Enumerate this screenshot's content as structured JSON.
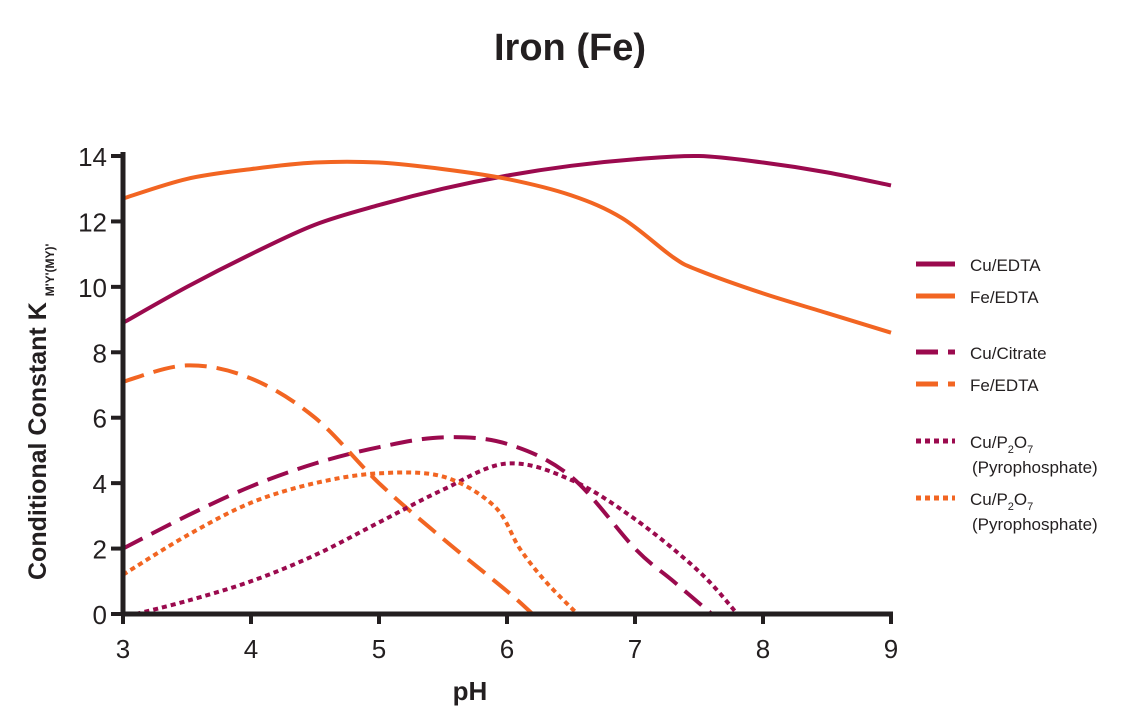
{
  "chart_data": {
    "type": "line",
    "title": "Iron (Fe)",
    "xlabel": "pH",
    "ylabel": "Conditional Constant K",
    "ylabel_subscript": "M'Y'(MY)'",
    "xlim": [
      3,
      9
    ],
    "ylim": [
      0,
      14
    ],
    "xticks": [
      3,
      4,
      5,
      6,
      7,
      8,
      9
    ],
    "yticks": [
      0,
      2,
      4,
      6,
      8,
      10,
      12,
      14
    ],
    "grid": false,
    "legend_position": "right",
    "colors": {
      "purple": "#9b0a4e",
      "orange": "#f26522"
    },
    "series": [
      {
        "name": "Cu/EDTA",
        "color": "#9b0a4e",
        "style": "solid",
        "x": [
          3,
          3.5,
          4,
          4.5,
          5,
          5.5,
          6,
          6.5,
          7,
          7.5,
          8,
          8.5,
          9
        ],
        "y": [
          8.9,
          10,
          11,
          11.9,
          12.5,
          13,
          13.4,
          13.7,
          13.9,
          14,
          13.8,
          13.5,
          13.1
        ]
      },
      {
        "name": "Fe/EDTA",
        "color": "#f26522",
        "style": "solid",
        "x": [
          3,
          3.5,
          4,
          4.5,
          5,
          5.5,
          6,
          6.5,
          6.9,
          7.3,
          7.5,
          8,
          8.5,
          9
        ],
        "y": [
          12.7,
          13.3,
          13.6,
          13.8,
          13.8,
          13.6,
          13.3,
          12.8,
          12.1,
          10.9,
          10.5,
          9.8,
          9.2,
          8.6
        ]
      },
      {
        "name": "Cu/Citrate",
        "color": "#9b0a4e",
        "style": "dashed",
        "x": [
          3,
          3.5,
          4,
          4.5,
          5,
          5.5,
          6,
          6.5,
          7,
          7.3,
          7.6
        ],
        "y": [
          2,
          3,
          3.9,
          4.6,
          5.1,
          5.4,
          5.2,
          4.2,
          2,
          1,
          0
        ]
      },
      {
        "name": "Fe/EDTA",
        "color": "#f26522",
        "style": "dashed",
        "x": [
          3,
          3.5,
          4,
          4.5,
          5,
          5.5,
          6,
          6.2
        ],
        "y": [
          7.1,
          7.6,
          7.2,
          6,
          4,
          2.3,
          0.7,
          0
        ]
      },
      {
        "name": "Cu/P2O7",
        "name2": "(Pyrophosphate)",
        "color": "#9b0a4e",
        "style": "dotted",
        "x": [
          3.1,
          3.5,
          4,
          4.5,
          5,
          5.5,
          6,
          6.5,
          7,
          7.5,
          7.8
        ],
        "y": [
          0,
          0.4,
          1,
          1.8,
          2.8,
          3.8,
          4.6,
          4.1,
          2.9,
          1.3,
          0
        ]
      },
      {
        "name": "Cu/P2O7",
        "name2": "(Pyrophosphate)",
        "color": "#f26522",
        "style": "dotted",
        "x": [
          3,
          3.5,
          4,
          4.5,
          5,
          5.5,
          5.9,
          6.1,
          6.3,
          6.55
        ],
        "y": [
          1.2,
          2.4,
          3.4,
          4,
          4.3,
          4.2,
          3.3,
          2,
          1,
          0
        ]
      }
    ]
  }
}
